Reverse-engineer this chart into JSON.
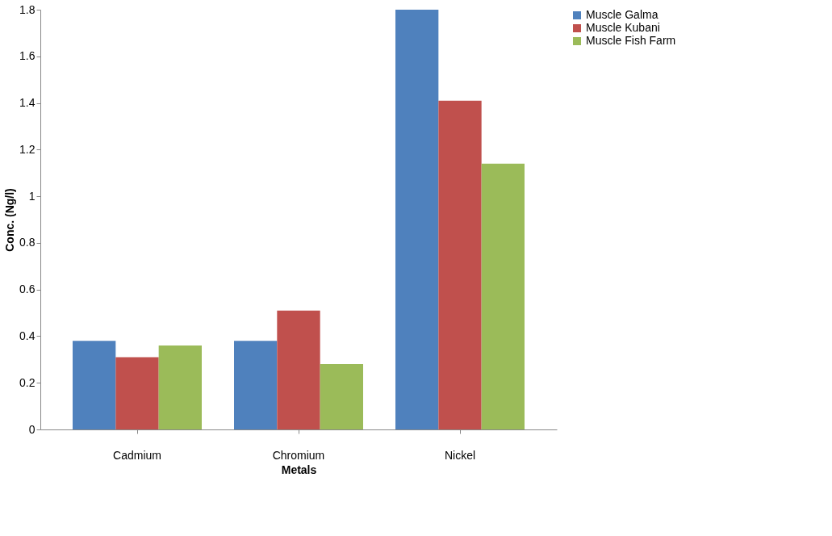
{
  "chart_data": {
    "type": "bar",
    "xlabel": "Metals",
    "ylabel": "Conc. (Ng/l)",
    "categories": [
      "Cadmium",
      "Chromium",
      "Nickel"
    ],
    "series": [
      {
        "name": "Muscle Galma",
        "color": "#4f81bd",
        "values": [
          0.38,
          0.38,
          1.8
        ]
      },
      {
        "name": "Muscle Kubani",
        "color": "#c0504d",
        "values": [
          0.31,
          0.51,
          1.41
        ]
      },
      {
        "name": "Muscle Fish Farm",
        "color": "#9bbb59",
        "values": [
          0.36,
          0.28,
          1.14
        ]
      }
    ],
    "ylim": [
      0,
      1.8
    ],
    "yticks": [
      0,
      {
        "value": 0.2,
        "label": "0.2"
      },
      {
        "value": 0.4,
        "label": "0.4"
      },
      {
        "value": 0.6,
        "label": "0.6"
      },
      {
        "value": 0.8,
        "label": "0.8"
      },
      1,
      {
        "value": 1.2,
        "label": "1.2"
      },
      {
        "value": 1.4,
        "label": "1.4"
      },
      {
        "value": 1.6,
        "label": "1.6"
      },
      {
        "value": 1.8,
        "label": "1.8"
      }
    ],
    "grid": false,
    "legend": "right"
  }
}
